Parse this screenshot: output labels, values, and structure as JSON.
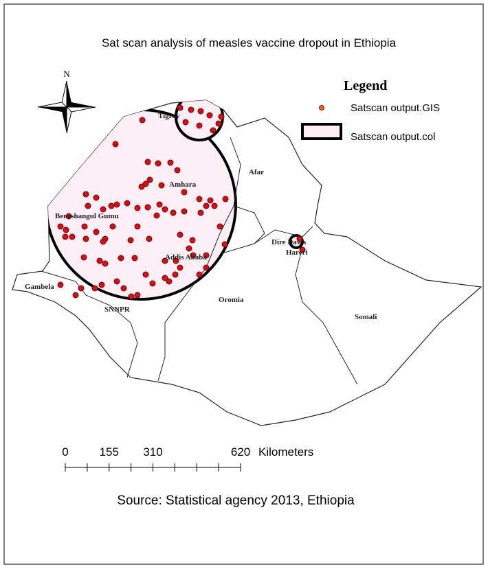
{
  "title": "Sat scan analysis of measles vaccine dropout in Ethiopia",
  "north_label": "N",
  "legend": {
    "title": "Legend",
    "items": [
      "Satscan output.GIS",
      "Satscan output.col"
    ]
  },
  "regions": [
    "Tigray",
    "Afar",
    "Amhara",
    "Beneshangul Gumu",
    "Addis Ababa",
    "Dire Dawa",
    "Hareri",
    "Gambela",
    "Oromia",
    "SNNPR",
    "Somali"
  ],
  "scale_bar": {
    "ticks": [
      0,
      155,
      310,
      620
    ],
    "unit": "Kilometers"
  },
  "source": "Source: Statistical agency 2013, Ethiopia"
}
